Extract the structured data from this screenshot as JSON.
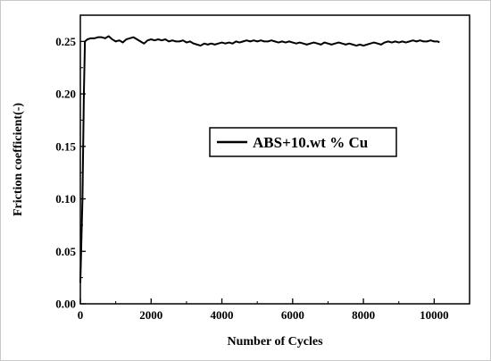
{
  "chart_data": {
    "type": "line",
    "xlabel": "Number of Cycles",
    "ylabel": "Friction coefficient(-)",
    "xlim": [
      0,
      11000
    ],
    "ylim": [
      0,
      0.275
    ],
    "xticks": [
      0,
      2000,
      4000,
      6000,
      8000,
      10000
    ],
    "xtick_labels": [
      "0",
      "2000",
      "4000",
      "6000",
      "8000",
      "10000"
    ],
    "yticks": [
      0,
      0.05,
      0.1,
      0.15,
      0.2,
      0.25
    ],
    "ytick_labels": [
      "0.00",
      "0.05",
      "0.10",
      "0.15",
      "0.20",
      "0.25"
    ],
    "grid": false,
    "legend_position": "center-right",
    "series": [
      {
        "name": "ABS+10.wt % Cu",
        "color": "#000000",
        "x": [
          0,
          60,
          100,
          130,
          200,
          300,
          400,
          500,
          600,
          700,
          800,
          900,
          1000,
          1100,
          1200,
          1300,
          1400,
          1500,
          1600,
          1700,
          1800,
          1900,
          2000,
          2100,
          2200,
          2300,
          2400,
          2500,
          2600,
          2700,
          2800,
          2900,
          3000,
          3100,
          3200,
          3300,
          3400,
          3500,
          3600,
          3700,
          3800,
          3900,
          4000,
          4100,
          4200,
          4300,
          4400,
          4500,
          4600,
          4700,
          4800,
          4900,
          5000,
          5100,
          5200,
          5300,
          5400,
          5500,
          5600,
          5700,
          5800,
          5900,
          6000,
          6100,
          6200,
          6300,
          6400,
          6500,
          6600,
          6700,
          6800,
          6900,
          7000,
          7100,
          7200,
          7300,
          7400,
          7500,
          7600,
          7700,
          7800,
          7900,
          8000,
          8100,
          8200,
          8300,
          8400,
          8500,
          8600,
          8700,
          8800,
          8900,
          9000,
          9100,
          9200,
          9300,
          9400,
          9500,
          9600,
          9700,
          9800,
          9900,
          10000,
          10100,
          10150
        ],
        "y": [
          0.02,
          0.1,
          0.2,
          0.25,
          0.252,
          0.253,
          0.253,
          0.254,
          0.254,
          0.253,
          0.255,
          0.252,
          0.25,
          0.251,
          0.249,
          0.252,
          0.253,
          0.254,
          0.252,
          0.25,
          0.248,
          0.251,
          0.252,
          0.251,
          0.252,
          0.251,
          0.252,
          0.25,
          0.251,
          0.25,
          0.25,
          0.251,
          0.249,
          0.25,
          0.248,
          0.247,
          0.246,
          0.248,
          0.247,
          0.248,
          0.247,
          0.248,
          0.249,
          0.248,
          0.249,
          0.248,
          0.25,
          0.249,
          0.25,
          0.251,
          0.25,
          0.251,
          0.25,
          0.251,
          0.25,
          0.25,
          0.251,
          0.25,
          0.249,
          0.25,
          0.249,
          0.25,
          0.249,
          0.248,
          0.249,
          0.248,
          0.247,
          0.248,
          0.249,
          0.248,
          0.247,
          0.249,
          0.248,
          0.247,
          0.248,
          0.249,
          0.248,
          0.247,
          0.248,
          0.247,
          0.246,
          0.247,
          0.246,
          0.247,
          0.248,
          0.249,
          0.248,
          0.247,
          0.249,
          0.25,
          0.249,
          0.25,
          0.249,
          0.25,
          0.249,
          0.25,
          0.251,
          0.25,
          0.251,
          0.25,
          0.25,
          0.251,
          0.25,
          0.25,
          0.249
        ]
      }
    ]
  }
}
